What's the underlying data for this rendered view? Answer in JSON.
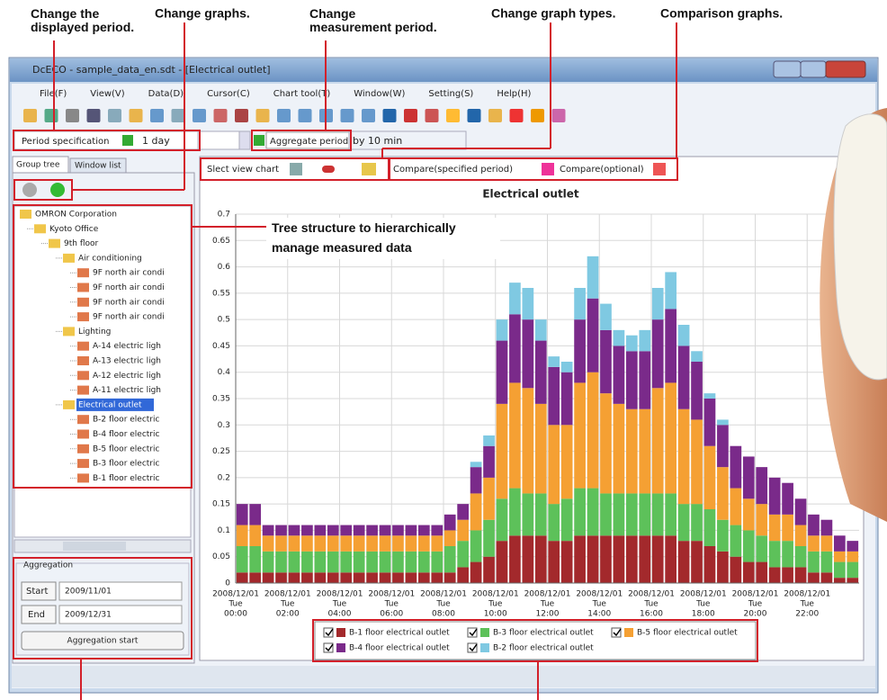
{
  "annotations": {
    "period": "Change the displayed period.",
    "graphs": "Change graphs.",
    "measurement": "Change measurement period.",
    "types": "Change graph types.",
    "comparison": "Comparison graphs.",
    "tree": "Tree structure to hierarchically manage measured data"
  },
  "window": {
    "title": "DcECO - sample_data_en.sdt - [Electrical outlet]",
    "menu": [
      "File(F)",
      "View(V)",
      "Data(D)",
      "Cursor(C)",
      "Chart tool(T)",
      "Window(W)",
      "Setting(S)",
      "Help(H)"
    ],
    "period_spec": "Period specification",
    "period_value": "1 day",
    "aggregate_period": "Aggregate period",
    "aggregate_value": "by 10 min",
    "tabs": [
      "Group tree",
      "Window list"
    ],
    "tree": [
      {
        "label": "OMRON Corporation",
        "depth": 0
      },
      {
        "label": "Kyoto Office",
        "depth": 1
      },
      {
        "label": "9th floor",
        "depth": 2
      },
      {
        "label": "Air conditioning",
        "depth": 3
      },
      {
        "label": "9F north air condi",
        "depth": 4
      },
      {
        "label": "9F north air condi",
        "depth": 4
      },
      {
        "label": "9F north air condi",
        "depth": 4
      },
      {
        "label": "9F north air condi",
        "depth": 4
      },
      {
        "label": "Lighting",
        "depth": 3
      },
      {
        "label": "A-14 electric ligh",
        "depth": 4
      },
      {
        "label": "A-13 electric ligh",
        "depth": 4
      },
      {
        "label": "A-12 electric ligh",
        "depth": 4
      },
      {
        "label": "A-11 electric ligh",
        "depth": 4
      },
      {
        "label": "Electrical outlet",
        "depth": 3,
        "selected": true
      },
      {
        "label": "B-2 floor electric",
        "depth": 4
      },
      {
        "label": "B-4 floor electric",
        "depth": 4
      },
      {
        "label": "B-5 floor electric",
        "depth": 4
      },
      {
        "label": "B-3 floor electric",
        "depth": 4
      },
      {
        "label": "B-1 floor electric",
        "depth": 4
      }
    ],
    "aggregation": {
      "title": "Aggregation",
      "start": "Start",
      "start_date": "2009/11/01",
      "end": "End",
      "end_date": "2009/12/31",
      "button": "Aggregation start"
    },
    "view_chart": "Slect view chart",
    "compare_specified": "Compare(specified period)",
    "compare_optional": "Compare(optional)"
  },
  "chart_data": {
    "type": "stacked_bar",
    "title": "Electrical outlet",
    "x_date": "2008/12/01",
    "x_day": "Tue",
    "categories": [
      "00:00",
      null,
      null,
      null,
      "02:00",
      null,
      null,
      null,
      "04:00",
      null,
      null,
      null,
      "06:00",
      null,
      null,
      null,
      "08:00",
      null,
      null,
      null,
      "10:00",
      null,
      null,
      null,
      "12:00",
      null,
      null,
      null,
      "14:00",
      null,
      null,
      null,
      "16:00",
      null,
      null,
      null,
      "18:00",
      null,
      null,
      null,
      "20:00",
      null,
      null,
      null,
      "22:00",
      null,
      null,
      null
    ],
    "series": [
      {
        "name": "B-1 floor electrical outlet",
        "color": "#a3292c",
        "values": [
          0.02,
          0.02,
          0.02,
          0.02,
          0.02,
          0.02,
          0.02,
          0.02,
          0.02,
          0.02,
          0.02,
          0.02,
          0.02,
          0.02,
          0.02,
          0.02,
          0.02,
          0.03,
          0.04,
          0.05,
          0.08,
          0.09,
          0.09,
          0.09,
          0.08,
          0.08,
          0.09,
          0.09,
          0.09,
          0.09,
          0.09,
          0.09,
          0.09,
          0.09,
          0.08,
          0.08,
          0.07,
          0.06,
          0.05,
          0.04,
          0.04,
          0.03,
          0.03,
          0.03,
          0.02,
          0.02,
          0.01,
          0.01
        ]
      },
      {
        "name": "B-3 floor electrical outlet",
        "color": "#5dc15a",
        "values": [
          0.05,
          0.05,
          0.04,
          0.04,
          0.04,
          0.04,
          0.04,
          0.04,
          0.04,
          0.04,
          0.04,
          0.04,
          0.04,
          0.04,
          0.04,
          0.04,
          0.05,
          0.05,
          0.06,
          0.07,
          0.08,
          0.09,
          0.08,
          0.08,
          0.07,
          0.08,
          0.09,
          0.09,
          0.08,
          0.08,
          0.08,
          0.08,
          0.08,
          0.08,
          0.07,
          0.07,
          0.07,
          0.06,
          0.06,
          0.06,
          0.05,
          0.05,
          0.05,
          0.04,
          0.04,
          0.04,
          0.03,
          0.03
        ]
      },
      {
        "name": "B-5 floor electrical outlet",
        "color": "#f5a033",
        "values": [
          0.04,
          0.04,
          0.03,
          0.03,
          0.03,
          0.03,
          0.03,
          0.03,
          0.03,
          0.03,
          0.03,
          0.03,
          0.03,
          0.03,
          0.03,
          0.03,
          0.03,
          0.04,
          0.07,
          0.08,
          0.18,
          0.2,
          0.2,
          0.17,
          0.15,
          0.14,
          0.2,
          0.22,
          0.19,
          0.17,
          0.16,
          0.16,
          0.2,
          0.21,
          0.18,
          0.16,
          0.12,
          0.1,
          0.07,
          0.06,
          0.06,
          0.05,
          0.05,
          0.04,
          0.03,
          0.03,
          0.02,
          0.02
        ]
      },
      {
        "name": "B-4 floor electrical outlet",
        "color": "#7a2a8a",
        "values": [
          0.04,
          0.04,
          0.02,
          0.02,
          0.02,
          0.02,
          0.02,
          0.02,
          0.02,
          0.02,
          0.02,
          0.02,
          0.02,
          0.02,
          0.02,
          0.02,
          0.03,
          0.03,
          0.05,
          0.06,
          0.12,
          0.13,
          0.13,
          0.12,
          0.11,
          0.1,
          0.12,
          0.14,
          0.12,
          0.11,
          0.11,
          0.11,
          0.13,
          0.14,
          0.12,
          0.11,
          0.09,
          0.08,
          0.08,
          0.08,
          0.07,
          0.07,
          0.06,
          0.05,
          0.04,
          0.03,
          0.03,
          0.02
        ]
      },
      {
        "name": "B-2 floor electrical outlet",
        "color": "#7fc9e2",
        "values": [
          0,
          0,
          0,
          0,
          0,
          0,
          0,
          0,
          0,
          0,
          0,
          0,
          0,
          0,
          0,
          0,
          0,
          0,
          0.01,
          0.02,
          0.04,
          0.06,
          0.06,
          0.04,
          0.02,
          0.02,
          0.06,
          0.08,
          0.05,
          0.03,
          0.03,
          0.04,
          0.06,
          0.07,
          0.04,
          0.02,
          0.01,
          0.01,
          0,
          0,
          0,
          0,
          0,
          0,
          0,
          0,
          0,
          0
        ]
      }
    ],
    "ylim": [
      0,
      0.7
    ],
    "yticks": [
      0,
      0.05,
      0.1,
      0.15,
      0.2,
      0.25,
      0.3,
      0.35,
      0.4,
      0.45,
      0.5,
      0.55,
      0.6,
      0.65,
      0.7
    ],
    "grid": true
  }
}
